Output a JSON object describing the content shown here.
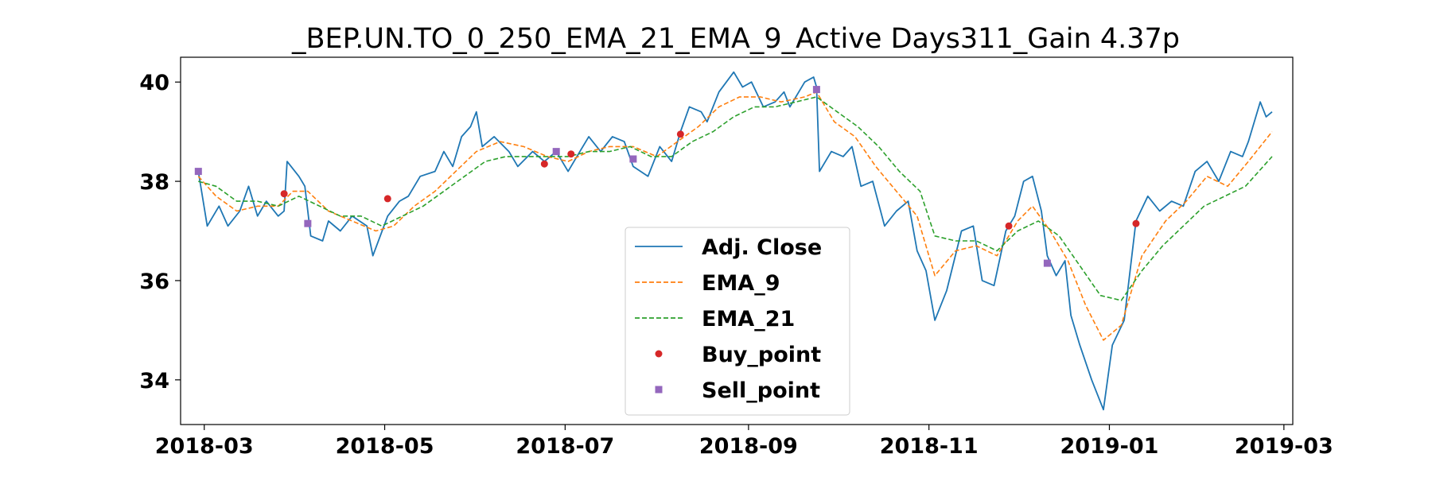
{
  "chart_data": {
    "type": "line",
    "title": "_BEP.UN.TO_0_250_EMA_21_EMA_9_Active Days311_Gain   4.37p",
    "xlabel": "",
    "ylabel": "",
    "x_range": [
      "2018-02-21",
      "2019-03-04"
    ],
    "ylim": [
      33.1,
      40.5
    ],
    "x_ticks": [
      "2018-03-01",
      "2018-05-01",
      "2018-07-01",
      "2018-09-01",
      "2018-11-01",
      "2019-01-01",
      "2019-03-01"
    ],
    "x_tick_labels": [
      "2018-03",
      "2018-05",
      "2018-07",
      "2018-09",
      "2018-11",
      "2019-01",
      "2019-03"
    ],
    "y_ticks": [
      34,
      36,
      38,
      40
    ],
    "y_tick_labels": [
      "34",
      "36",
      "38",
      "40"
    ],
    "grid": false,
    "legend_position": "lower-center",
    "legend": [
      "Adj. Close",
      "EMA_9",
      "EMA_21",
      "Buy_point",
      "Sell_point"
    ],
    "series": [
      {
        "name": "Adj. Close",
        "style": "solid",
        "color": "#1f77b4",
        "points": [
          [
            "2018-02-27",
            38.2
          ],
          [
            "2018-03-02",
            37.1
          ],
          [
            "2018-03-06",
            37.5
          ],
          [
            "2018-03-09",
            37.1
          ],
          [
            "2018-03-13",
            37.4
          ],
          [
            "2018-03-16",
            37.9
          ],
          [
            "2018-03-19",
            37.3
          ],
          [
            "2018-03-22",
            37.6
          ],
          [
            "2018-03-26",
            37.3
          ],
          [
            "2018-03-28",
            37.4
          ],
          [
            "2018-03-29",
            38.4
          ],
          [
            "2018-04-02",
            38.1
          ],
          [
            "2018-04-04",
            37.9
          ],
          [
            "2018-04-06",
            36.9
          ],
          [
            "2018-04-10",
            36.8
          ],
          [
            "2018-04-12",
            37.2
          ],
          [
            "2018-04-16",
            37.0
          ],
          [
            "2018-04-20",
            37.3
          ],
          [
            "2018-04-25",
            37.1
          ],
          [
            "2018-04-27",
            36.5
          ],
          [
            "2018-05-02",
            37.3
          ],
          [
            "2018-05-06",
            37.6
          ],
          [
            "2018-05-09",
            37.7
          ],
          [
            "2018-05-13",
            38.1
          ],
          [
            "2018-05-18",
            38.2
          ],
          [
            "2018-05-21",
            38.6
          ],
          [
            "2018-05-24",
            38.3
          ],
          [
            "2018-05-27",
            38.9
          ],
          [
            "2018-05-30",
            39.1
          ],
          [
            "2018-06-01",
            39.4
          ],
          [
            "2018-06-03",
            38.7
          ],
          [
            "2018-06-07",
            38.9
          ],
          [
            "2018-06-12",
            38.6
          ],
          [
            "2018-06-15",
            38.3
          ],
          [
            "2018-06-20",
            38.6
          ],
          [
            "2018-06-24",
            38.4
          ],
          [
            "2018-06-28",
            38.6
          ],
          [
            "2018-07-02",
            38.2
          ],
          [
            "2018-07-06",
            38.6
          ],
          [
            "2018-07-09",
            38.9
          ],
          [
            "2018-07-13",
            38.6
          ],
          [
            "2018-07-17",
            38.9
          ],
          [
            "2018-07-21",
            38.8
          ],
          [
            "2018-07-24",
            38.3
          ],
          [
            "2018-07-29",
            38.1
          ],
          [
            "2018-08-02",
            38.7
          ],
          [
            "2018-08-06",
            38.4
          ],
          [
            "2018-08-09",
            39.0
          ],
          [
            "2018-08-12",
            39.5
          ],
          [
            "2018-08-16",
            39.4
          ],
          [
            "2018-08-18",
            39.2
          ],
          [
            "2018-08-22",
            39.8
          ],
          [
            "2018-08-27",
            40.2
          ],
          [
            "2018-08-30",
            39.9
          ],
          [
            "2018-09-02",
            40.0
          ],
          [
            "2018-09-06",
            39.5
          ],
          [
            "2018-09-10",
            39.6
          ],
          [
            "2018-09-13",
            39.8
          ],
          [
            "2018-09-15",
            39.5
          ],
          [
            "2018-09-20",
            40.0
          ],
          [
            "2018-09-23",
            40.1
          ],
          [
            "2018-09-24",
            39.9
          ],
          [
            "2018-09-25",
            38.2
          ],
          [
            "2018-09-29",
            38.6
          ],
          [
            "2018-10-03",
            38.5
          ],
          [
            "2018-10-06",
            38.7
          ],
          [
            "2018-10-09",
            37.9
          ],
          [
            "2018-10-13",
            38.0
          ],
          [
            "2018-10-17",
            37.1
          ],
          [
            "2018-10-21",
            37.4
          ],
          [
            "2018-10-25",
            37.6
          ],
          [
            "2018-10-28",
            36.6
          ],
          [
            "2018-10-31",
            36.2
          ],
          [
            "2018-11-03",
            35.2
          ],
          [
            "2018-11-07",
            35.8
          ],
          [
            "2018-11-12",
            37.0
          ],
          [
            "2018-11-16",
            37.1
          ],
          [
            "2018-11-19",
            36.0
          ],
          [
            "2018-11-23",
            35.9
          ],
          [
            "2018-11-27",
            37.0
          ],
          [
            "2018-11-30",
            37.3
          ],
          [
            "2018-12-03",
            38.0
          ],
          [
            "2018-12-06",
            38.1
          ],
          [
            "2018-12-09",
            37.4
          ],
          [
            "2018-12-11",
            36.5
          ],
          [
            "2018-12-14",
            36.1
          ],
          [
            "2018-12-17",
            36.4
          ],
          [
            "2018-12-19",
            35.3
          ],
          [
            "2018-12-22",
            34.7
          ],
          [
            "2018-12-26",
            34.0
          ],
          [
            "2018-12-30",
            33.4
          ],
          [
            "2019-01-02",
            34.7
          ],
          [
            "2019-01-06",
            35.2
          ],
          [
            "2019-01-08",
            36.2
          ],
          [
            "2019-01-10",
            37.2
          ],
          [
            "2019-01-14",
            37.7
          ],
          [
            "2019-01-18",
            37.4
          ],
          [
            "2019-01-22",
            37.6
          ],
          [
            "2019-01-26",
            37.5
          ],
          [
            "2019-01-30",
            38.2
          ],
          [
            "2019-02-03",
            38.4
          ],
          [
            "2019-02-07",
            38.0
          ],
          [
            "2019-02-11",
            38.6
          ],
          [
            "2019-02-15",
            38.5
          ],
          [
            "2019-02-17",
            38.8
          ],
          [
            "2019-02-21",
            39.6
          ],
          [
            "2019-02-23",
            39.3
          ],
          [
            "2019-02-25",
            39.4
          ]
        ]
      },
      {
        "name": "EMA_9",
        "style": "dashed",
        "color": "#ff7f0e",
        "points": [
          [
            "2018-02-27",
            38.1
          ],
          [
            "2018-03-05",
            37.7
          ],
          [
            "2018-03-12",
            37.4
          ],
          [
            "2018-03-19",
            37.5
          ],
          [
            "2018-03-26",
            37.5
          ],
          [
            "2018-03-31",
            37.8
          ],
          [
            "2018-04-05",
            37.8
          ],
          [
            "2018-04-12",
            37.4
          ],
          [
            "2018-04-20",
            37.2
          ],
          [
            "2018-04-28",
            37.0
          ],
          [
            "2018-05-04",
            37.1
          ],
          [
            "2018-05-11",
            37.5
          ],
          [
            "2018-05-18",
            37.8
          ],
          [
            "2018-05-25",
            38.2
          ],
          [
            "2018-06-01",
            38.6
          ],
          [
            "2018-06-09",
            38.8
          ],
          [
            "2018-06-17",
            38.7
          ],
          [
            "2018-06-25",
            38.5
          ],
          [
            "2018-07-02",
            38.4
          ],
          [
            "2018-07-09",
            38.6
          ],
          [
            "2018-07-16",
            38.7
          ],
          [
            "2018-07-24",
            38.7
          ],
          [
            "2018-08-01",
            38.5
          ],
          [
            "2018-08-08",
            38.8
          ],
          [
            "2018-08-15",
            39.1
          ],
          [
            "2018-08-22",
            39.5
          ],
          [
            "2018-08-29",
            39.7
          ],
          [
            "2018-09-05",
            39.7
          ],
          [
            "2018-09-12",
            39.6
          ],
          [
            "2018-09-20",
            39.7
          ],
          [
            "2018-09-24",
            39.8
          ],
          [
            "2018-09-30",
            39.2
          ],
          [
            "2018-10-07",
            38.9
          ],
          [
            "2018-10-14",
            38.3
          ],
          [
            "2018-10-21",
            37.8
          ],
          [
            "2018-10-28",
            37.3
          ],
          [
            "2018-11-03",
            36.1
          ],
          [
            "2018-11-10",
            36.6
          ],
          [
            "2018-11-17",
            36.7
          ],
          [
            "2018-11-24",
            36.5
          ],
          [
            "2018-12-01",
            37.2
          ],
          [
            "2018-12-06",
            37.5
          ],
          [
            "2018-12-12",
            37.0
          ],
          [
            "2018-12-18",
            36.4
          ],
          [
            "2018-12-24",
            35.5
          ],
          [
            "2018-12-30",
            34.8
          ],
          [
            "2019-01-05",
            35.1
          ],
          [
            "2019-01-12",
            36.5
          ],
          [
            "2019-01-20",
            37.2
          ],
          [
            "2019-01-27",
            37.6
          ],
          [
            "2019-02-03",
            38.1
          ],
          [
            "2019-02-10",
            37.9
          ],
          [
            "2019-02-17",
            38.4
          ],
          [
            "2019-02-25",
            39.0
          ]
        ]
      },
      {
        "name": "EMA_21",
        "style": "dashed",
        "color": "#2ca02c",
        "points": [
          [
            "2018-02-27",
            38.0
          ],
          [
            "2018-03-05",
            37.9
          ],
          [
            "2018-03-12",
            37.6
          ],
          [
            "2018-03-19",
            37.6
          ],
          [
            "2018-03-26",
            37.5
          ],
          [
            "2018-04-02",
            37.7
          ],
          [
            "2018-04-09",
            37.5
          ],
          [
            "2018-04-16",
            37.3
          ],
          [
            "2018-04-23",
            37.3
          ],
          [
            "2018-04-30",
            37.1
          ],
          [
            "2018-05-07",
            37.3
          ],
          [
            "2018-05-14",
            37.5
          ],
          [
            "2018-05-21",
            37.8
          ],
          [
            "2018-05-28",
            38.1
          ],
          [
            "2018-06-04",
            38.4
          ],
          [
            "2018-06-11",
            38.5
          ],
          [
            "2018-06-18",
            38.5
          ],
          [
            "2018-06-25",
            38.5
          ],
          [
            "2018-07-02",
            38.5
          ],
          [
            "2018-07-09",
            38.6
          ],
          [
            "2018-07-16",
            38.6
          ],
          [
            "2018-07-23",
            38.7
          ],
          [
            "2018-07-30",
            38.5
          ],
          [
            "2018-08-06",
            38.5
          ],
          [
            "2018-08-13",
            38.8
          ],
          [
            "2018-08-20",
            39.0
          ],
          [
            "2018-08-27",
            39.3
          ],
          [
            "2018-09-03",
            39.5
          ],
          [
            "2018-09-10",
            39.5
          ],
          [
            "2018-09-17",
            39.6
          ],
          [
            "2018-09-24",
            39.7
          ],
          [
            "2018-10-01",
            39.4
          ],
          [
            "2018-10-08",
            39.1
          ],
          [
            "2018-10-15",
            38.7
          ],
          [
            "2018-10-22",
            38.2
          ],
          [
            "2018-10-29",
            37.8
          ],
          [
            "2018-11-03",
            36.9
          ],
          [
            "2018-11-10",
            36.8
          ],
          [
            "2018-11-17",
            36.8
          ],
          [
            "2018-11-24",
            36.6
          ],
          [
            "2018-12-01",
            37.0
          ],
          [
            "2018-12-08",
            37.2
          ],
          [
            "2018-12-15",
            36.9
          ],
          [
            "2018-12-22",
            36.3
          ],
          [
            "2018-12-29",
            35.7
          ],
          [
            "2019-01-05",
            35.6
          ],
          [
            "2019-01-12",
            36.2
          ],
          [
            "2019-01-19",
            36.7
          ],
          [
            "2019-01-26",
            37.1
          ],
          [
            "2019-02-02",
            37.5
          ],
          [
            "2019-02-09",
            37.7
          ],
          [
            "2019-02-16",
            37.9
          ],
          [
            "2019-02-25",
            38.5
          ]
        ]
      }
    ],
    "buy_points": [
      [
        "2018-03-28",
        37.75
      ],
      [
        "2018-05-02",
        37.65
      ],
      [
        "2018-06-24",
        38.35
      ],
      [
        "2018-07-03",
        38.55
      ],
      [
        "2018-08-09",
        38.95
      ],
      [
        "2018-11-28",
        37.1
      ],
      [
        "2019-01-10",
        37.15
      ]
    ],
    "sell_points": [
      [
        "2018-02-27",
        38.2
      ],
      [
        "2018-04-05",
        37.15
      ],
      [
        "2018-06-28",
        38.6
      ],
      [
        "2018-07-24",
        38.45
      ],
      [
        "2018-09-24",
        39.85
      ],
      [
        "2018-12-11",
        36.35
      ]
    ],
    "colors": {
      "buy": "#d62728",
      "sell": "#9467bd"
    }
  }
}
